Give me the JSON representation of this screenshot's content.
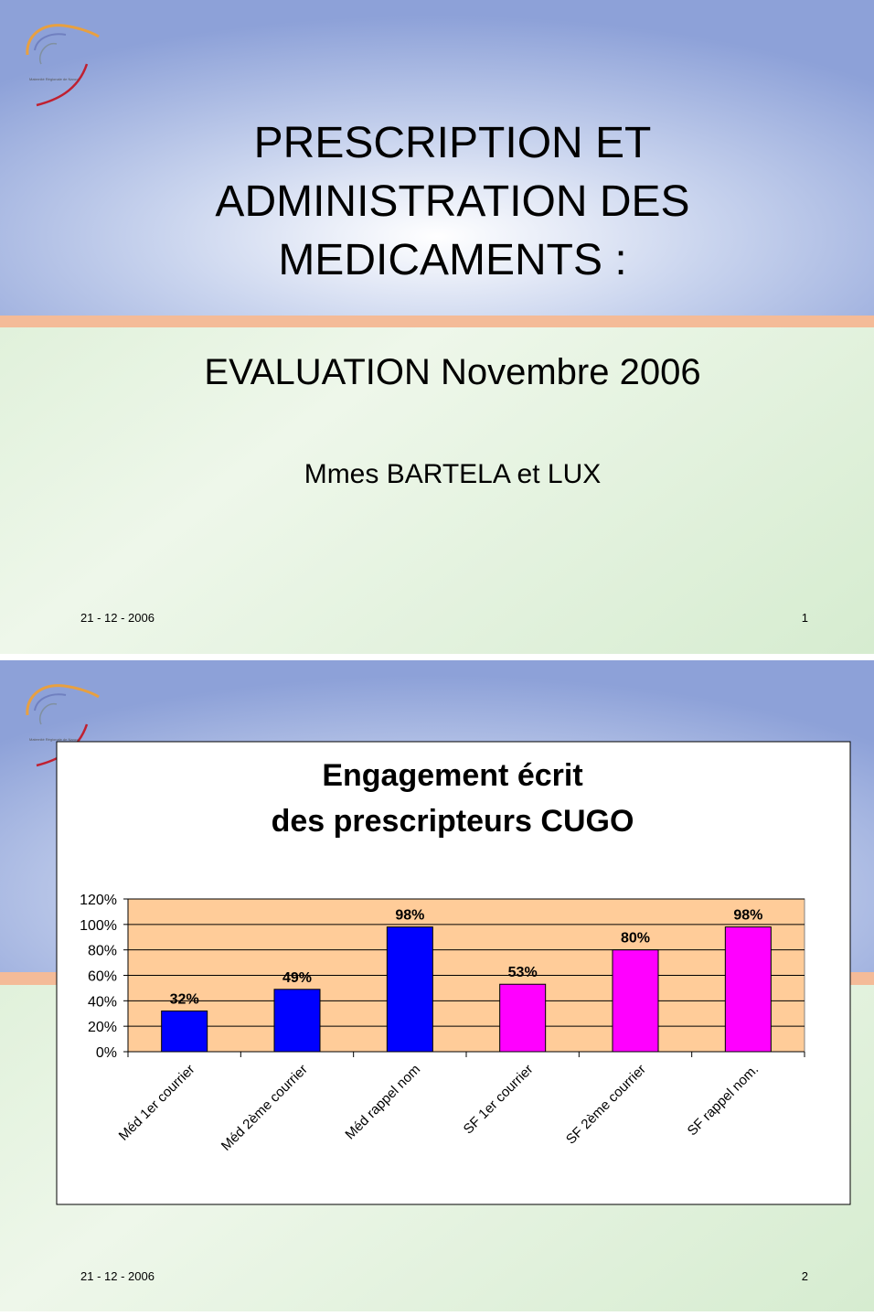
{
  "logo_text": "Maternité Régionale de Nancy",
  "slides": [
    {
      "title": [
        "PRESCRIPTION ET",
        "ADMINISTRATION DES",
        "MEDICAMENTS :"
      ],
      "subtitle": "EVALUATION Novembre 2006",
      "authors": "Mmes BARTELA et LUX",
      "date": "21 - 12 - 2006",
      "number": "1"
    },
    {
      "date": "21 - 12 - 2006",
      "number": "2"
    }
  ],
  "chart_data": {
    "type": "bar",
    "title": [
      "Engagement écrit",
      "des prescripteurs CUGO"
    ],
    "categories": [
      "Méd 1er courrier",
      "Méd 2ème courrier",
      "Méd rappel nom",
      "SF 1er courrier",
      "SF 2ème courrier",
      "SF rappel nom."
    ],
    "values": [
      32,
      49,
      98,
      53,
      80,
      98
    ],
    "value_labels": [
      "32%",
      "49%",
      "98%",
      "53%",
      "80%",
      "98%"
    ],
    "colors": [
      "#0000ff",
      "#0000ff",
      "#0000ff",
      "#ff00ff",
      "#ff00ff",
      "#ff00ff"
    ],
    "ylim": [
      0,
      120
    ],
    "yticks": [
      {
        "value": 0,
        "label": "0%"
      },
      {
        "value": 20,
        "label": "20%"
      },
      {
        "value": 40,
        "label": "40%"
      },
      {
        "value": 60,
        "label": "60%"
      },
      {
        "value": 80,
        "label": "80%"
      },
      {
        "value": 100,
        "label": "100%"
      },
      {
        "value": 120,
        "label": "120%"
      }
    ],
    "grid": true,
    "plot_background": "#ffcc99"
  }
}
